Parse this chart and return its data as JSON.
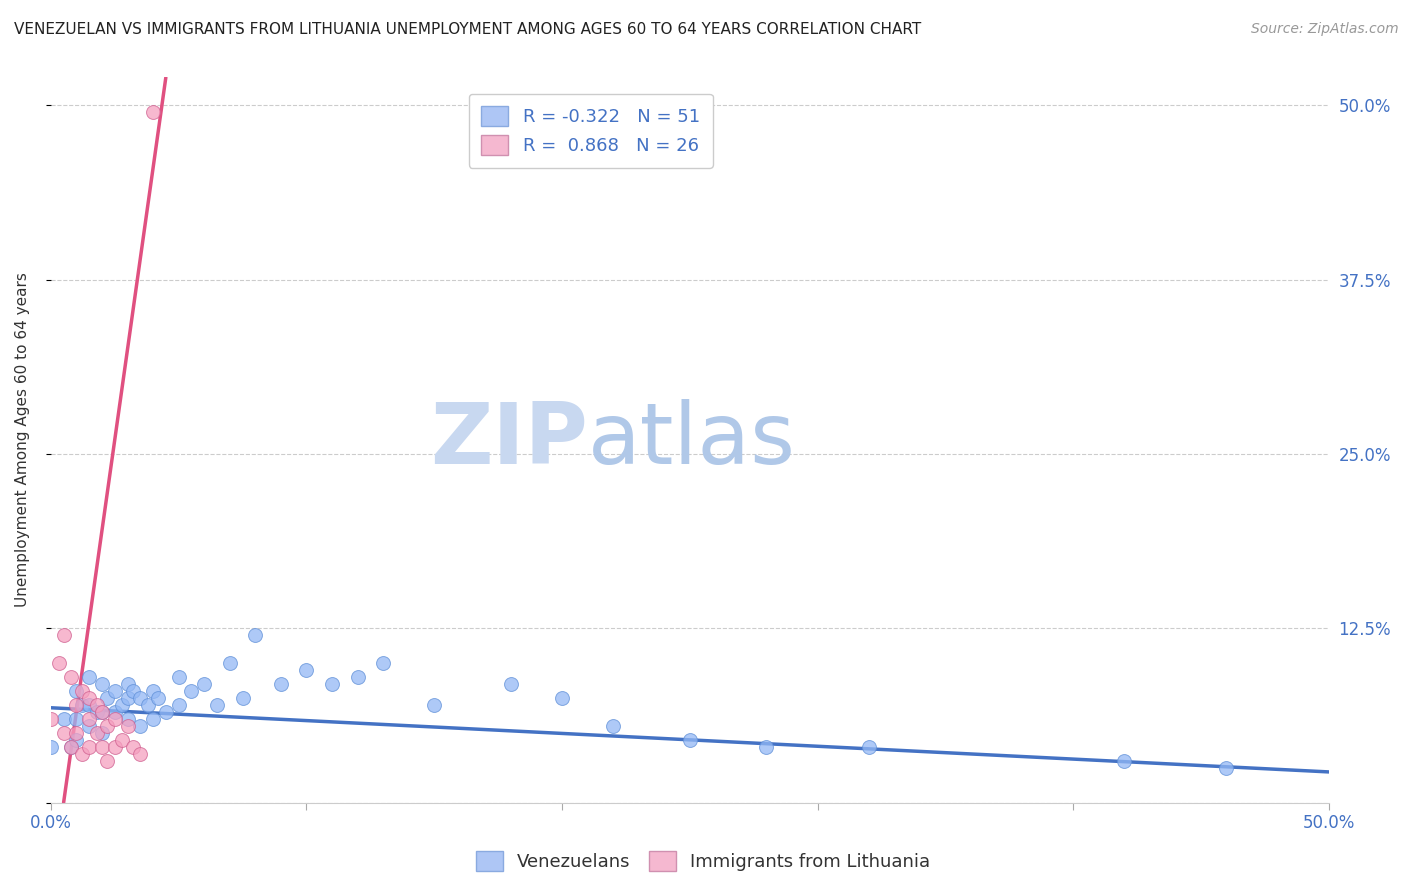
{
  "title": "VENEZUELAN VS IMMIGRANTS FROM LITHUANIA UNEMPLOYMENT AMONG AGES 60 TO 64 YEARS CORRELATION CHART",
  "source": "Source: ZipAtlas.com",
  "ylabel": "Unemployment Among Ages 60 to 64 years",
  "xlim": [
    0.0,
    0.5
  ],
  "ylim": [
    0.0,
    0.52
  ],
  "watermark_zip": "ZIP",
  "watermark_atlas": "atlas",
  "venezuelan_scatter": {
    "x": [
      0.0,
      0.005,
      0.008,
      0.01,
      0.01,
      0.01,
      0.012,
      0.015,
      0.015,
      0.015,
      0.018,
      0.02,
      0.02,
      0.02,
      0.022,
      0.025,
      0.025,
      0.028,
      0.03,
      0.03,
      0.03,
      0.032,
      0.035,
      0.035,
      0.038,
      0.04,
      0.04,
      0.042,
      0.045,
      0.05,
      0.05,
      0.055,
      0.06,
      0.065,
      0.07,
      0.075,
      0.08,
      0.09,
      0.1,
      0.11,
      0.12,
      0.13,
      0.15,
      0.18,
      0.2,
      0.22,
      0.25,
      0.28,
      0.32,
      0.42,
      0.46
    ],
    "y": [
      0.04,
      0.06,
      0.04,
      0.08,
      0.06,
      0.045,
      0.07,
      0.09,
      0.07,
      0.055,
      0.065,
      0.085,
      0.065,
      0.05,
      0.075,
      0.08,
      0.065,
      0.07,
      0.085,
      0.075,
      0.06,
      0.08,
      0.075,
      0.055,
      0.07,
      0.08,
      0.06,
      0.075,
      0.065,
      0.09,
      0.07,
      0.08,
      0.085,
      0.07,
      0.1,
      0.075,
      0.12,
      0.085,
      0.095,
      0.085,
      0.09,
      0.1,
      0.07,
      0.085,
      0.075,
      0.055,
      0.045,
      0.04,
      0.04,
      0.03,
      0.025
    ],
    "color": "#93b8f5",
    "edgecolor": "#6090d8",
    "size": 100
  },
  "lithuania_scatter": {
    "x": [
      0.0,
      0.003,
      0.005,
      0.005,
      0.008,
      0.008,
      0.01,
      0.01,
      0.012,
      0.012,
      0.015,
      0.015,
      0.015,
      0.018,
      0.018,
      0.02,
      0.02,
      0.022,
      0.022,
      0.025,
      0.025,
      0.028,
      0.03,
      0.032,
      0.035,
      0.04
    ],
    "y": [
      0.06,
      0.1,
      0.12,
      0.05,
      0.09,
      0.04,
      0.07,
      0.05,
      0.08,
      0.035,
      0.075,
      0.06,
      0.04,
      0.07,
      0.05,
      0.065,
      0.04,
      0.055,
      0.03,
      0.06,
      0.04,
      0.045,
      0.055,
      0.04,
      0.035,
      0.495
    ],
    "color": "#f5a0c0",
    "edgecolor": "#d06090",
    "size": 100
  },
  "blue_trendline": {
    "x": [
      0.0,
      0.5
    ],
    "y": [
      0.068,
      0.022
    ],
    "color": "#4472c4",
    "linewidth": 2.5
  },
  "pink_trendline": {
    "x": [
      0.005,
      0.045
    ],
    "y": [
      0.0,
      0.52
    ],
    "color": "#e05080",
    "linewidth": 2.5
  },
  "grid_color": "#cccccc",
  "background_color": "#ffffff",
  "title_fontsize": 11,
  "axis_label_fontsize": 11,
  "tick_fontsize": 12,
  "source_fontsize": 10,
  "watermark_fontsize_zip": 62,
  "watermark_fontsize_atlas": 62,
  "watermark_color_zip": "#c8d8f0",
  "watermark_color_atlas": "#b0c8e8",
  "right_ytick_color": "#4472c4",
  "bottom_label_color": "#4472c4"
}
